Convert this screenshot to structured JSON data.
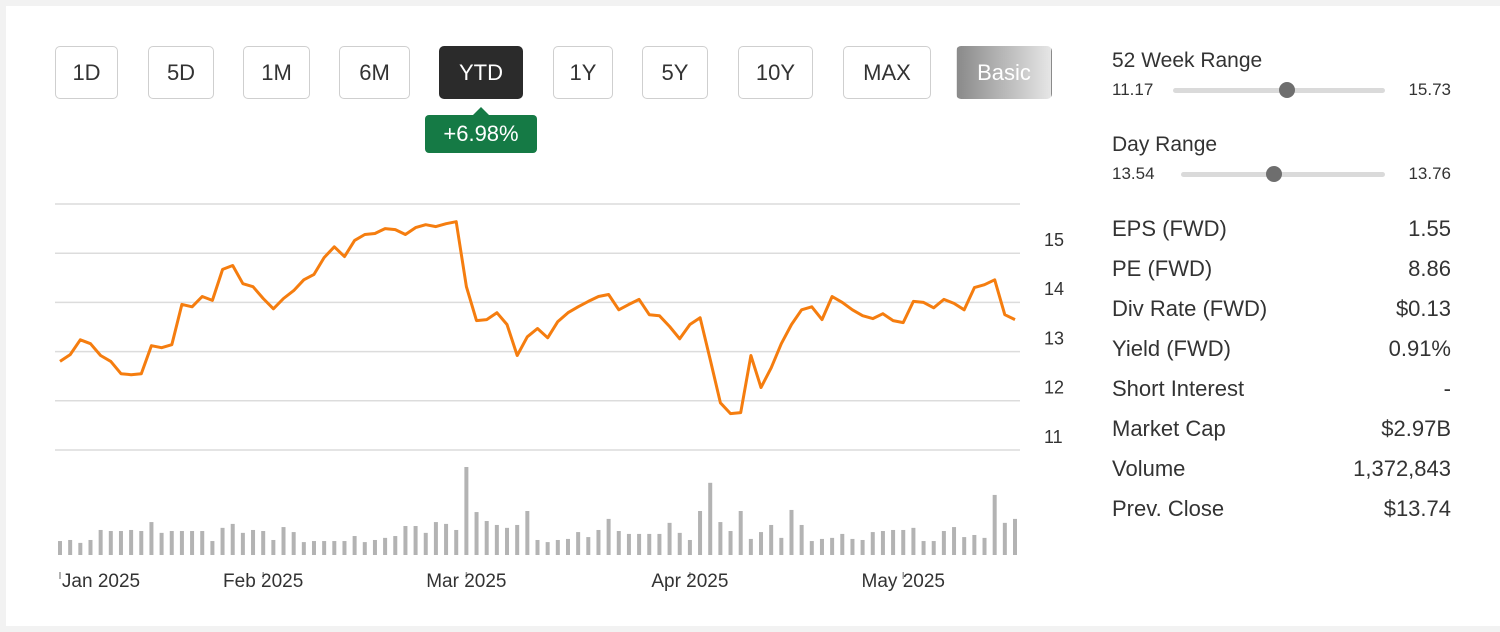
{
  "buttons": [
    "1D",
    "5D",
    "1M",
    "6M",
    "YTD",
    "1Y",
    "5Y",
    "10Y",
    "MAX",
    "Basic"
  ],
  "selected_button": 4,
  "change_badge": "+6.98%",
  "chart_data": {
    "type": "line",
    "categories": [
      "Jan 2025",
      null,
      null,
      null,
      null,
      null,
      null,
      null,
      null,
      null,
      null,
      null,
      null,
      null,
      null,
      null,
      null,
      null,
      null,
      null,
      "Feb 2025",
      null,
      null,
      null,
      null,
      null,
      null,
      null,
      null,
      null,
      null,
      null,
      null,
      null,
      null,
      null,
      null,
      null,
      null,
      null,
      "Mar 2025",
      null,
      null,
      null,
      null,
      null,
      null,
      null,
      null,
      null,
      null,
      null,
      null,
      null,
      null,
      null,
      null,
      null,
      null,
      null,
      null,
      null,
      "Apr 2025",
      null,
      null,
      null,
      null,
      null,
      null,
      null,
      null,
      null,
      null,
      null,
      null,
      null,
      null,
      null,
      null,
      null,
      null,
      null,
      null,
      "May 2025",
      null,
      null,
      null,
      null,
      null,
      null,
      null,
      null,
      null,
      null,
      null
    ],
    "series": [
      {
        "type": "line",
        "color": "#f57d0f",
        "values": [
          12.8,
          12.94,
          13.24,
          13.16,
          12.92,
          12.8,
          12.55,
          12.53,
          12.55,
          13.12,
          13.08,
          13.14,
          13.96,
          13.91,
          14.12,
          14.04,
          14.67,
          14.75,
          14.38,
          14.32,
          14.08,
          13.87,
          14.08,
          14.24,
          14.46,
          14.57,
          14.91,
          15.13,
          14.93,
          15.26,
          15.38,
          15.4,
          15.5,
          15.48,
          15.38,
          15.52,
          15.58,
          15.54,
          15.6,
          15.64,
          14.32,
          13.63,
          13.65,
          13.79,
          13.55,
          12.92,
          13.3,
          13.47,
          13.28,
          13.61,
          13.79,
          13.91,
          14.02,
          14.12,
          14.16,
          13.85,
          13.96,
          14.06,
          13.75,
          13.73,
          13.51,
          13.26,
          13.55,
          13.69,
          12.84,
          11.96,
          11.74,
          11.76,
          12.92,
          12.27,
          12.67,
          13.16,
          13.55,
          13.85,
          13.91,
          13.65,
          14.12,
          14.0,
          13.85,
          13.73,
          13.67,
          13.77,
          13.63,
          13.59,
          14.02,
          14.0,
          13.89,
          14.06,
          13.98,
          13.85,
          14.3,
          14.36,
          14.46,
          13.75,
          13.65
        ]
      },
      {
        "type": "bar",
        "color": "#b3b3b3",
        "values": [
          530000,
          570000,
          460000,
          570000,
          950000,
          910000,
          910000,
          950000,
          910000,
          1250000,
          840000,
          910000,
          910000,
          910000,
          910000,
          530000,
          1030000,
          1180000,
          840000,
          950000,
          910000,
          570000,
          1060000,
          870000,
          490000,
          530000,
          530000,
          530000,
          530000,
          720000,
          490000,
          570000,
          650000,
          720000,
          1100000,
          1100000,
          840000,
          1250000,
          1180000,
          950000,
          3340000,
          1630000,
          1290000,
          1140000,
          1030000,
          1140000,
          1670000,
          570000,
          490000,
          570000,
          610000,
          870000,
          680000,
          950000,
          1370000,
          910000,
          800000,
          800000,
          800000,
          800000,
          1220000,
          840000,
          570000,
          1670000,
          2740000,
          1250000,
          910000,
          1670000,
          610000,
          870000,
          1140000,
          650000,
          1710000,
          1140000,
          530000,
          610000,
          650000,
          800000,
          610000,
          570000,
          870000,
          910000,
          950000,
          950000,
          1030000,
          530000,
          530000,
          910000,
          1060000,
          680000,
          760000,
          650000,
          2280000,
          1220000,
          1370000
        ]
      }
    ],
    "ylim": [
      11,
      16
    ],
    "yticks": [
      11,
      12,
      13,
      14,
      15
    ],
    "grid": true
  },
  "ranges": [
    {
      "title": "52 Week Range",
      "low": 11.17,
      "high": 15.73,
      "marker": 13.63
    },
    {
      "title": "Day Range",
      "low": 13.54,
      "high": 13.76,
      "marker": 13.64
    }
  ],
  "stats": [
    {
      "label": "EPS (FWD)",
      "value": "1.55"
    },
    {
      "label": "PE (FWD)",
      "value": "8.86"
    },
    {
      "label": "Div Rate (FWD)",
      "value": "$0.13"
    },
    {
      "label": "Yield (FWD)",
      "value": "0.91%"
    },
    {
      "label": "Short Interest",
      "value": "-"
    },
    {
      "label": "Market Cap",
      "value": "$2.97B"
    },
    {
      "label": "Volume",
      "value": "1,372,843"
    },
    {
      "label": "Prev. Close",
      "value": "$13.74"
    }
  ]
}
